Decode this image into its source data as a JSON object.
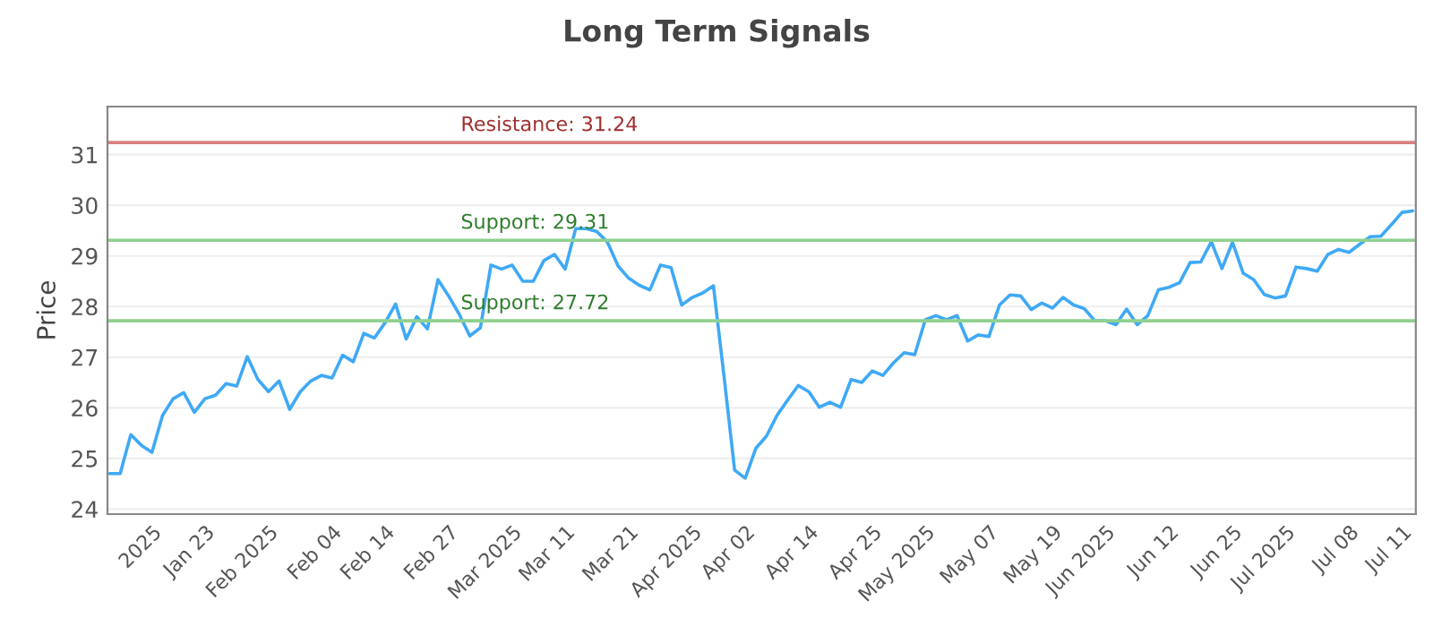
{
  "chart_data": {
    "type": "line",
    "title": "Long Term Signals",
    "ylabel": "Price",
    "categories": [
      null,
      null,
      null,
      null,
      "2025",
      null,
      null,
      null,
      null,
      "Jan 23",
      null,
      null,
      null,
      null,
      null,
      "Feb 2025",
      null,
      null,
      null,
      null,
      null,
      "Feb 04",
      null,
      null,
      null,
      null,
      "Feb 14",
      null,
      null,
      null,
      null,
      null,
      "Feb 27",
      null,
      null,
      null,
      null,
      null,
      "Mar 2025",
      null,
      null,
      null,
      null,
      "Mar 11",
      null,
      null,
      null,
      null,
      null,
      "Mar 21",
      null,
      null,
      null,
      null,
      null,
      "Apr 2025",
      null,
      null,
      null,
      null,
      "Apr 02",
      null,
      null,
      null,
      null,
      null,
      "Apr 14",
      null,
      null,
      null,
      null,
      null,
      "Apr 25",
      null,
      null,
      null,
      null,
      "May 2025",
      null,
      null,
      null,
      null,
      null,
      "May 07",
      null,
      null,
      null,
      null,
      null,
      "May 19",
      null,
      null,
      null,
      null,
      "Jun 2025",
      null,
      null,
      null,
      null,
      null,
      "Jun 12",
      null,
      null,
      null,
      null,
      null,
      "Jun 25",
      null,
      null,
      null,
      null,
      "Jul 2025",
      null,
      null,
      null,
      null,
      null,
      "Jul 08",
      null,
      null,
      null,
      null,
      "Jul 11",
      null
    ],
    "series": [
      {
        "color": "#3fa9f5",
        "values": [
          24.7,
          24.7,
          25.47,
          25.26,
          25.12,
          25.85,
          26.18,
          26.3,
          25.91,
          26.18,
          26.25,
          26.48,
          26.43,
          27.01,
          26.56,
          26.32,
          26.53,
          25.97,
          26.32,
          26.53,
          26.64,
          26.59,
          27.04,
          26.91,
          27.47,
          27.38,
          27.68,
          28.05,
          27.36,
          27.8,
          27.56,
          28.53,
          28.21,
          27.85,
          27.42,
          27.58,
          28.82,
          28.74,
          28.82,
          28.5,
          28.5,
          28.91,
          29.03,
          28.74,
          29.54,
          29.54,
          29.48,
          29.27,
          28.8,
          28.56,
          28.42,
          28.33,
          28.82,
          28.77,
          28.03,
          28.18,
          28.27,
          28.41,
          26.62,
          24.77,
          24.61,
          25.2,
          25.44,
          25.85,
          26.15,
          26.44,
          26.32,
          26.01,
          26.11,
          26.01,
          26.56,
          26.5,
          26.73,
          26.64,
          26.89,
          27.09,
          27.05,
          27.74,
          27.82,
          27.74,
          27.82,
          27.32,
          27.44,
          27.41,
          28.03,
          28.23,
          28.21,
          27.94,
          28.07,
          27.97,
          28.18,
          28.03,
          27.96,
          27.72,
          27.72,
          27.64,
          27.95,
          27.64,
          27.82,
          28.33,
          28.38,
          28.47,
          28.87,
          28.88,
          29.28,
          28.75,
          29.27,
          28.66,
          28.53,
          28.24,
          28.17,
          28.21,
          28.78,
          28.75,
          28.7,
          29.03,
          29.13,
          29.07,
          29.23,
          29.38,
          29.39,
          29.62,
          29.86,
          29.89
        ]
      }
    ],
    "ylim": [
      23.9,
      31.95
    ],
    "yticks": [
      24,
      25,
      26,
      27,
      28,
      29,
      30,
      31
    ],
    "grid": "y",
    "marker": "none",
    "line_style": "solid",
    "ref_lines": [
      {
        "axis": "y",
        "value": 31.24,
        "label": "Resistance: 31.24",
        "color": "#d98080"
      },
      {
        "axis": "y",
        "value": 29.31,
        "label": "Support: 29.31",
        "color": "#8fd18f"
      },
      {
        "axis": "y",
        "value": 27.72,
        "label": "Support: 27.72",
        "color": "#8fd18f"
      }
    ]
  }
}
